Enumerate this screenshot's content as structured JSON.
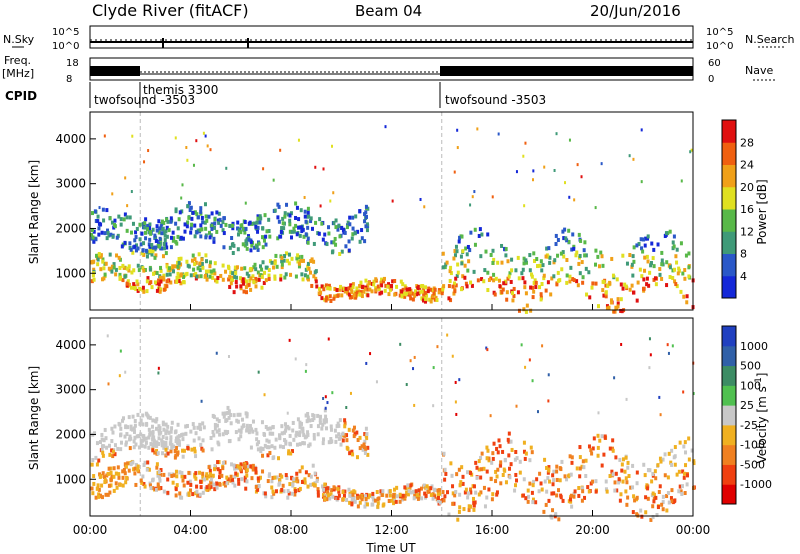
{
  "header": {
    "station": "Clyde River (fitACF)",
    "beam": "Beam 04",
    "date": "20/Jun/2016"
  },
  "top_panels": {
    "nsky_label": "N.Sky",
    "nsearch_label": "N.Search",
    "nsky_ticks": [
      "10^5",
      "10^0"
    ],
    "nsearch_ticks": [
      "10^5",
      "10^0"
    ],
    "freq_label": "Freq.",
    "freq_unit": "[MHz]",
    "freq_ticks": [
      "18",
      "8"
    ],
    "nave_label": "Nave",
    "nave_ticks": [
      "60",
      "0"
    ],
    "cpid_label": "CPID",
    "cpid_segments": [
      {
        "name": "twofsound -3503"
      },
      {
        "name": "themis 3300"
      },
      {
        "name": "twofsound -3503"
      }
    ]
  },
  "x_axis": {
    "label": "Time UT",
    "ticks": [
      "00:00",
      "04:00",
      "08:00",
      "12:00",
      "16:00",
      "20:00",
      "00:00"
    ]
  },
  "chart_data": [
    {
      "type": "heatmap",
      "quantity": "Power",
      "ylabel": "Slant Range [km]",
      "yticks": [
        1000,
        2000,
        3000,
        4000
      ],
      "ylim": [
        180,
        4600
      ],
      "xlim_hours": [
        0,
        24
      ],
      "colorbar_label": "Power [dB]",
      "colorbar_ticks": [
        4,
        8,
        12,
        16,
        20,
        24,
        28
      ],
      "colorbar_colors": [
        "#1428d8",
        "#2a58c8",
        "#3f9a78",
        "#58b848",
        "#e0e020",
        "#f0a018",
        "#f06010",
        "#e01010"
      ],
      "echo_bands": [
        {
          "t0": 0,
          "t1": 3,
          "r0": 1500,
          "r1": 2300
        },
        {
          "t0": 0,
          "t1": 9,
          "r0": 700,
          "r1": 1300
        },
        {
          "t0": 2,
          "t1": 11,
          "r0": 1600,
          "r1": 2400
        },
        {
          "t0": 9,
          "t1": 14,
          "r0": 450,
          "r1": 800
        },
        {
          "t0": 14,
          "t1": 24,
          "r0": 400,
          "r1": 1700
        }
      ]
    },
    {
      "type": "heatmap",
      "quantity": "Velocity",
      "ylabel": "Slant Range [km]",
      "yticks": [
        1000,
        2000,
        3000,
        4000
      ],
      "ylim": [
        180,
        4600
      ],
      "xlim_hours": [
        0,
        24
      ],
      "colorbar_label": "Velocity [m s^-1]",
      "colorbar_ticks": [
        1000,
        500,
        100,
        25,
        -25,
        -100,
        -500,
        -1000
      ],
      "colorbar_colors": [
        "#2040c0",
        "#3060a8",
        "#3c8c64",
        "#50c050",
        "#c8c8c8",
        "#f0b020",
        "#f08020",
        "#f04010",
        "#e00000"
      ],
      "echo_bands": [
        {
          "t0": 0,
          "t1": 3,
          "r0": 1500,
          "r1": 2300
        },
        {
          "t0": 0,
          "t1": 9,
          "r0": 700,
          "r1": 1300
        },
        {
          "t0": 2,
          "t1": 11,
          "r0": 1600,
          "r1": 2400
        },
        {
          "t0": 9,
          "t1": 14,
          "r0": 450,
          "r1": 800
        },
        {
          "t0": 14,
          "t1": 24,
          "r0": 400,
          "r1": 1700
        }
      ]
    }
  ]
}
